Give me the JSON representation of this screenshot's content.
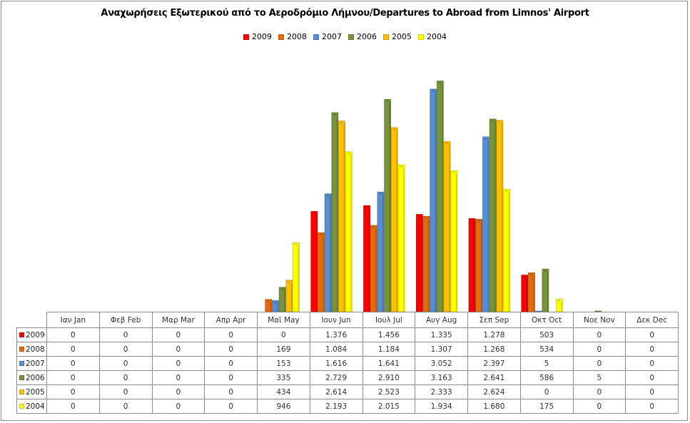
{
  "chart_data": {
    "type": "bar",
    "title": "Αναχωρήσεις Εξωτερικού από το Αεροδρόμιο Λήμνου/Departures to Abroad from Limnos' Airport",
    "xlabel": "",
    "ylabel": "",
    "ylim": [
      0,
      3500
    ],
    "grid": false,
    "legend_position": "top",
    "categories": [
      "Ιαν  Jan",
      "Φεβ  Feb",
      "Μαρ  Mar",
      "Απρ  Apr",
      "Μαϊ  May",
      "Ιουν  Jun",
      "Ιουλ  Jul",
      "Αυγ  Aug",
      "Σεπ  Sep",
      "Οκτ  Oct",
      "Νοε  Nov",
      "Δεκ  Dec"
    ],
    "series": [
      {
        "name": "2009",
        "color": "#ff0000",
        "values": [
          0,
          0,
          0,
          0,
          0,
          1376,
          1456,
          1335,
          1278,
          503,
          0,
          0
        ],
        "labels": [
          "0",
          "0",
          "0",
          "0",
          "0",
          "1.376",
          "1.456",
          "1.335",
          "1.278",
          "503",
          "0",
          "0"
        ]
      },
      {
        "name": "2008",
        "color": "#e36c0a",
        "values": [
          0,
          0,
          0,
          0,
          169,
          1084,
          1184,
          1307,
          1268,
          534,
          0,
          0
        ],
        "labels": [
          "0",
          "0",
          "0",
          "0",
          "169",
          "1.084",
          "1.184",
          "1.307",
          "1.268",
          "534",
          "0",
          "0"
        ]
      },
      {
        "name": "2007",
        "color": "#558ed5",
        "values": [
          0,
          0,
          0,
          0,
          153,
          1616,
          1641,
          3052,
          2397,
          5,
          0,
          0
        ],
        "labels": [
          "0",
          "0",
          "0",
          "0",
          "153",
          "1.616",
          "1.641",
          "3.052",
          "2.397",
          "5",
          "0",
          "0"
        ]
      },
      {
        "name": "2006",
        "color": "#77933c",
        "values": [
          0,
          0,
          0,
          0,
          335,
          2729,
          2910,
          3163,
          2641,
          586,
          5,
          0
        ],
        "labels": [
          "0",
          "0",
          "0",
          "0",
          "335",
          "2.729",
          "2.910",
          "3.163",
          "2.641",
          "586",
          "5",
          "0"
        ]
      },
      {
        "name": "2005",
        "color": "#ffc000",
        "values": [
          0,
          0,
          0,
          0,
          434,
          2614,
          2523,
          2333,
          2624,
          0,
          0,
          0
        ],
        "labels": [
          "0",
          "0",
          "0",
          "0",
          "434",
          "2.614",
          "2.523",
          "2.333",
          "2.624",
          "0",
          "0",
          "0"
        ]
      },
      {
        "name": "2004",
        "color": "#ffff00",
        "values": [
          0,
          0,
          0,
          0,
          946,
          2193,
          2015,
          1934,
          1680,
          175,
          0,
          0
        ],
        "labels": [
          "0",
          "0",
          "0",
          "0",
          "946",
          "2.193",
          "2.015",
          "1.934",
          "1.680",
          "175",
          "0",
          "0"
        ]
      }
    ]
  }
}
